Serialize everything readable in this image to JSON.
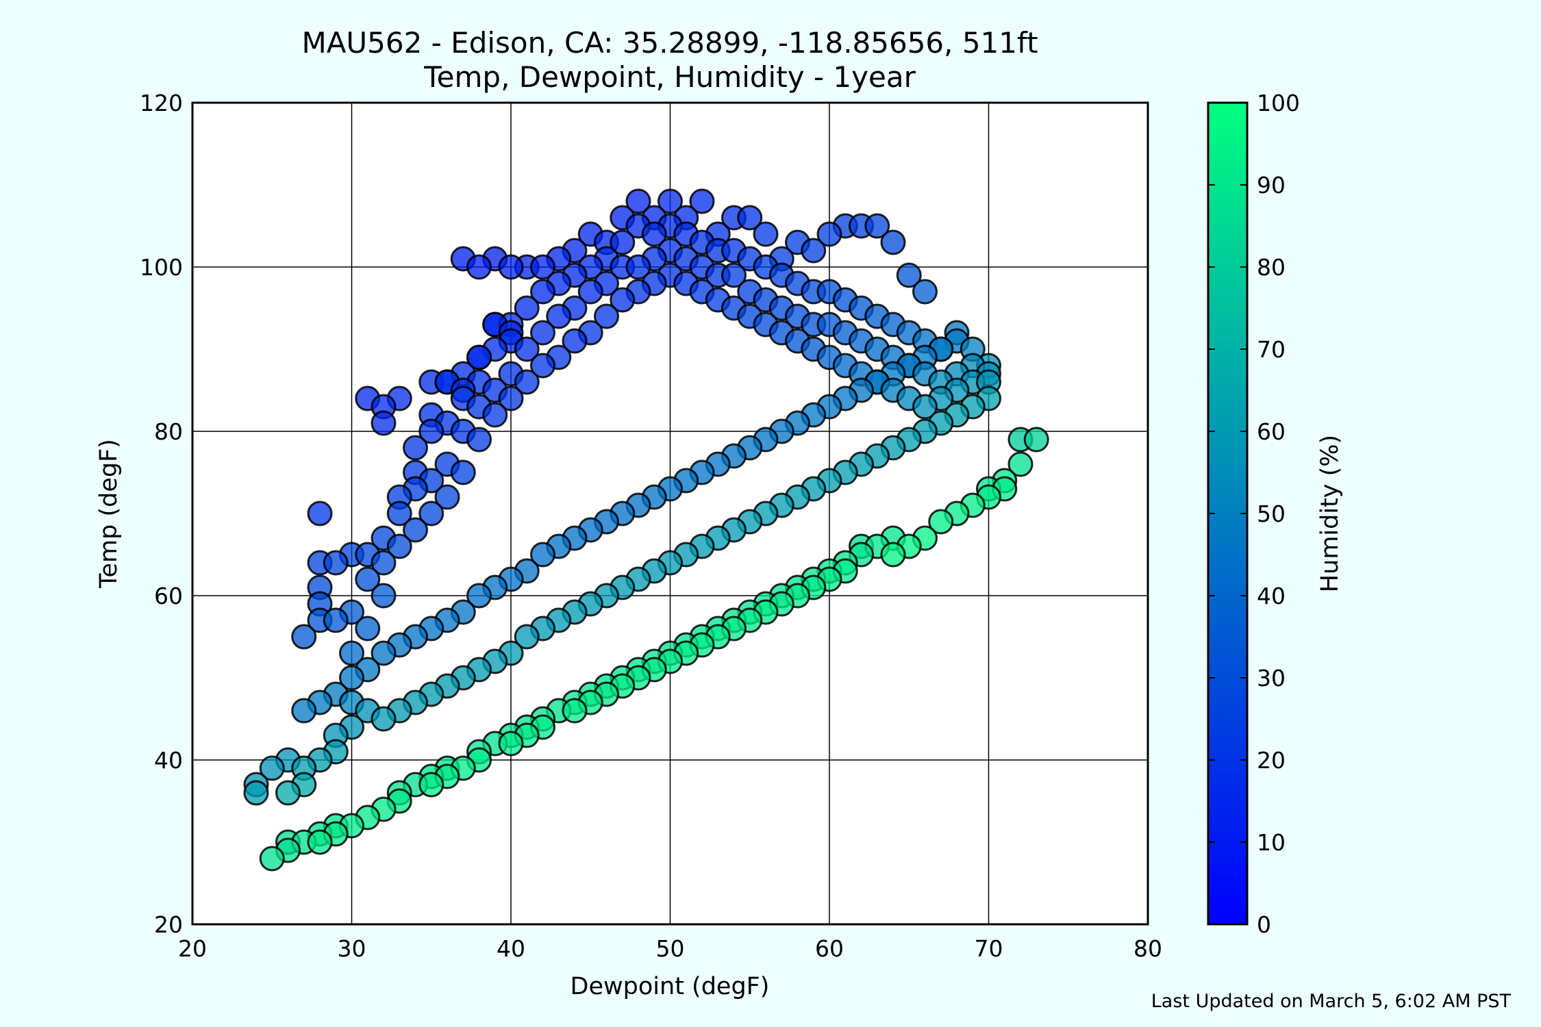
{
  "page": {
    "background": "#eeffff",
    "footer": "Last Updated on March 5, 6:02 AM PST"
  },
  "chart_data": {
    "type": "scatter",
    "title": "MAU562 - Edison, CA: 35.28899, -118.85656, 511ft",
    "subtitle": "Temp, Dewpoint, Humidity - 1year",
    "xlabel": "Dewpoint (degF)",
    "ylabel": "Temp (degF)",
    "xlim": [
      20,
      80
    ],
    "ylim": [
      20,
      120
    ],
    "xticks": [
      20,
      30,
      40,
      50,
      60,
      70,
      80
    ],
    "yticks": [
      20,
      40,
      60,
      80,
      100,
      120
    ],
    "grid": true,
    "colorbar": {
      "label": "Humidity (%)",
      "range": [
        0,
        100
      ],
      "ticks": [
        0,
        10,
        20,
        30,
        40,
        50,
        60,
        70,
        80,
        90,
        100
      ],
      "colormap": "winter",
      "low_color": "#0000ff",
      "high_color": "#00ff80"
    },
    "point_style": {
      "edge_color": "#000000",
      "alpha": 0.75
    },
    "points": [
      [
        25,
        28
      ],
      [
        26,
        29
      ],
      [
        26,
        30
      ],
      [
        27,
        30
      ],
      [
        28,
        30
      ],
      [
        28,
        31
      ],
      [
        29,
        31
      ],
      [
        29,
        32
      ],
      [
        30,
        32
      ],
      [
        31,
        33
      ],
      [
        32,
        34
      ],
      [
        33,
        35
      ],
      [
        33,
        36
      ],
      [
        34,
        37
      ],
      [
        35,
        37
      ],
      [
        35,
        38
      ],
      [
        36,
        38
      ],
      [
        36,
        39
      ],
      [
        37,
        39
      ],
      [
        38,
        40
      ],
      [
        38,
        41
      ],
      [
        39,
        42
      ],
      [
        40,
        42
      ],
      [
        40,
        43
      ],
      [
        41,
        43
      ],
      [
        41,
        44
      ],
      [
        42,
        44
      ],
      [
        42,
        45
      ],
      [
        43,
        46
      ],
      [
        44,
        46
      ],
      [
        44,
        47
      ],
      [
        45,
        47
      ],
      [
        45,
        48
      ],
      [
        46,
        48
      ],
      [
        46,
        49
      ],
      [
        47,
        49
      ],
      [
        47,
        50
      ],
      [
        48,
        50
      ],
      [
        48,
        51
      ],
      [
        49,
        51
      ],
      [
        49,
        52
      ],
      [
        50,
        52
      ],
      [
        50,
        53
      ],
      [
        51,
        53
      ],
      [
        51,
        54
      ],
      [
        52,
        54
      ],
      [
        52,
        55
      ],
      [
        53,
        55
      ],
      [
        53,
        56
      ],
      [
        54,
        56
      ],
      [
        54,
        57
      ],
      [
        55,
        57
      ],
      [
        55,
        58
      ],
      [
        56,
        58
      ],
      [
        56,
        59
      ],
      [
        57,
        59
      ],
      [
        57,
        60
      ],
      [
        58,
        60
      ],
      [
        58,
        61
      ],
      [
        59,
        61
      ],
      [
        59,
        62
      ],
      [
        60,
        62
      ],
      [
        60,
        63
      ],
      [
        61,
        63
      ],
      [
        61,
        64
      ],
      [
        62,
        65
      ],
      [
        62,
        66
      ],
      [
        63,
        66
      ],
      [
        64,
        65
      ],
      [
        64,
        67
      ],
      [
        65,
        66
      ],
      [
        66,
        67
      ],
      [
        67,
        69
      ],
      [
        68,
        70
      ],
      [
        69,
        71
      ],
      [
        70,
        72
      ],
      [
        70,
        73
      ],
      [
        71,
        73
      ],
      [
        71,
        74
      ],
      [
        72,
        76
      ],
      [
        72,
        79
      ],
      [
        73,
        79
      ],
      [
        24,
        36
      ],
      [
        24,
        37
      ],
      [
        25,
        39
      ],
      [
        26,
        36
      ],
      [
        26,
        40
      ],
      [
        27,
        37
      ],
      [
        27,
        39
      ],
      [
        28,
        40
      ],
      [
        29,
        41
      ],
      [
        29,
        43
      ],
      [
        30,
        44
      ],
      [
        30,
        47
      ],
      [
        31,
        46
      ],
      [
        32,
        45
      ],
      [
        33,
        46
      ],
      [
        34,
        47
      ],
      [
        35,
        48
      ],
      [
        36,
        49
      ],
      [
        37,
        50
      ],
      [
        38,
        51
      ],
      [
        39,
        52
      ],
      [
        40,
        53
      ],
      [
        41,
        55
      ],
      [
        42,
        56
      ],
      [
        43,
        57
      ],
      [
        44,
        58
      ],
      [
        45,
        59
      ],
      [
        46,
        60
      ],
      [
        47,
        61
      ],
      [
        48,
        62
      ],
      [
        49,
        63
      ],
      [
        50,
        64
      ],
      [
        51,
        65
      ],
      [
        52,
        66
      ],
      [
        53,
        67
      ],
      [
        54,
        68
      ],
      [
        55,
        69
      ],
      [
        56,
        70
      ],
      [
        57,
        71
      ],
      [
        58,
        72
      ],
      [
        59,
        73
      ],
      [
        60,
        74
      ],
      [
        61,
        75
      ],
      [
        62,
        76
      ],
      [
        63,
        77
      ],
      [
        64,
        78
      ],
      [
        65,
        79
      ],
      [
        66,
        80
      ],
      [
        67,
        81
      ],
      [
        68,
        82
      ],
      [
        69,
        83
      ],
      [
        70,
        84
      ],
      [
        27,
        46
      ],
      [
        28,
        47
      ],
      [
        29,
        48
      ],
      [
        30,
        50
      ],
      [
        31,
        51
      ],
      [
        32,
        53
      ],
      [
        33,
        54
      ],
      [
        34,
        55
      ],
      [
        35,
        56
      ],
      [
        36,
        57
      ],
      [
        37,
        58
      ],
      [
        38,
        60
      ],
      [
        39,
        61
      ],
      [
        40,
        62
      ],
      [
        41,
        63
      ],
      [
        42,
        65
      ],
      [
        43,
        66
      ],
      [
        44,
        67
      ],
      [
        45,
        68
      ],
      [
        46,
        69
      ],
      [
        47,
        70
      ],
      [
        48,
        71
      ],
      [
        49,
        72
      ],
      [
        50,
        73
      ],
      [
        51,
        74
      ],
      [
        52,
        75
      ],
      [
        53,
        76
      ],
      [
        54,
        77
      ],
      [
        55,
        78
      ],
      [
        56,
        79
      ],
      [
        57,
        80
      ],
      [
        58,
        81
      ],
      [
        59,
        82
      ],
      [
        60,
        83
      ],
      [
        61,
        84
      ],
      [
        62,
        85
      ],
      [
        63,
        86
      ],
      [
        64,
        87
      ],
      [
        65,
        88
      ],
      [
        66,
        89
      ],
      [
        67,
        90
      ],
      [
        68,
        91
      ],
      [
        69,
        90
      ],
      [
        70,
        88
      ],
      [
        27,
        55
      ],
      [
        28,
        57
      ],
      [
        28,
        59
      ],
      [
        28,
        61
      ],
      [
        28,
        64
      ],
      [
        29,
        57
      ],
      [
        29,
        64
      ],
      [
        28,
        70
      ],
      [
        30,
        53
      ],
      [
        30,
        58
      ],
      [
        30,
        65
      ],
      [
        31,
        56
      ],
      [
        31,
        62
      ],
      [
        31,
        65
      ],
      [
        32,
        60
      ],
      [
        32,
        64
      ],
      [
        32,
        67
      ],
      [
        33,
        66
      ],
      [
        33,
        70
      ],
      [
        33,
        72
      ],
      [
        34,
        68
      ],
      [
        34,
        73
      ],
      [
        34,
        75
      ],
      [
        34,
        78
      ],
      [
        35,
        70
      ],
      [
        35,
        74
      ],
      [
        35,
        80
      ],
      [
        35,
        86
      ],
      [
        36,
        72
      ],
      [
        36,
        76
      ],
      [
        36,
        81
      ],
      [
        36,
        86
      ],
      [
        37,
        75
      ],
      [
        37,
        80
      ],
      [
        37,
        84
      ],
      [
        37,
        87
      ],
      [
        38,
        79
      ],
      [
        38,
        83
      ],
      [
        38,
        86
      ],
      [
        38,
        89
      ],
      [
        39,
        82
      ],
      [
        39,
        85
      ],
      [
        39,
        90
      ],
      [
        39,
        93
      ],
      [
        40,
        84
      ],
      [
        40,
        87
      ],
      [
        40,
        91
      ],
      [
        40,
        93
      ],
      [
        41,
        86
      ],
      [
        41,
        90
      ],
      [
        41,
        95
      ],
      [
        41,
        100
      ],
      [
        42,
        88
      ],
      [
        42,
        92
      ],
      [
        42,
        97
      ],
      [
        42,
        100
      ],
      [
        43,
        89
      ],
      [
        43,
        94
      ],
      [
        43,
        98
      ],
      [
        43,
        101
      ],
      [
        44,
        91
      ],
      [
        44,
        95
      ],
      [
        44,
        99
      ],
      [
        44,
        102
      ],
      [
        45,
        92
      ],
      [
        45,
        97
      ],
      [
        45,
        100
      ],
      [
        45,
        104
      ],
      [
        46,
        94
      ],
      [
        46,
        98
      ],
      [
        46,
        101
      ],
      [
        46,
        103
      ],
      [
        47,
        96
      ],
      [
        47,
        100
      ],
      [
        47,
        103
      ],
      [
        47,
        106
      ],
      [
        48,
        97
      ],
      [
        48,
        100
      ],
      [
        48,
        105
      ],
      [
        48,
        108
      ],
      [
        49,
        98
      ],
      [
        49,
        101
      ],
      [
        49,
        104
      ],
      [
        49,
        106
      ],
      [
        50,
        99
      ],
      [
        50,
        102
      ],
      [
        50,
        105
      ],
      [
        50,
        108
      ],
      [
        51,
        98
      ],
      [
        51,
        101
      ],
      [
        51,
        104
      ],
      [
        51,
        106
      ],
      [
        52,
        97
      ],
      [
        52,
        100
      ],
      [
        52,
        103
      ],
      [
        52,
        108
      ],
      [
        53,
        96
      ],
      [
        53,
        99
      ],
      [
        53,
        102
      ],
      [
        53,
        104
      ],
      [
        54,
        95
      ],
      [
        54,
        99
      ],
      [
        54,
        102
      ],
      [
        54,
        106
      ],
      [
        55,
        94
      ],
      [
        55,
        97
      ],
      [
        55,
        101
      ],
      [
        55,
        106
      ],
      [
        56,
        93
      ],
      [
        56,
        96
      ],
      [
        56,
        100
      ],
      [
        56,
        104
      ],
      [
        57,
        92
      ],
      [
        57,
        95
      ],
      [
        57,
        99
      ],
      [
        57,
        101
      ],
      [
        58,
        91
      ],
      [
        58,
        94
      ],
      [
        58,
        98
      ],
      [
        58,
        103
      ],
      [
        59,
        90
      ],
      [
        59,
        93
      ],
      [
        59,
        97
      ],
      [
        59,
        102
      ],
      [
        60,
        89
      ],
      [
        60,
        93
      ],
      [
        60,
        97
      ],
      [
        60,
        104
      ],
      [
        61,
        88
      ],
      [
        61,
        92
      ],
      [
        61,
        96
      ],
      [
        61,
        105
      ],
      [
        62,
        87
      ],
      [
        62,
        91
      ],
      [
        62,
        95
      ],
      [
        62,
        105
      ],
      [
        63,
        86
      ],
      [
        63,
        90
      ],
      [
        63,
        94
      ],
      [
        63,
        105
      ],
      [
        64,
        85
      ],
      [
        64,
        89
      ],
      [
        64,
        93
      ],
      [
        64,
        103
      ],
      [
        65,
        84
      ],
      [
        65,
        88
      ],
      [
        65,
        92
      ],
      [
        65,
        99
      ],
      [
        66,
        83
      ],
      [
        66,
        87
      ],
      [
        66,
        91
      ],
      [
        66,
        97
      ],
      [
        67,
        84
      ],
      [
        67,
        86
      ],
      [
        67,
        90
      ],
      [
        68,
        85
      ],
      [
        68,
        87
      ],
      [
        68,
        92
      ],
      [
        69,
        86
      ],
      [
        69,
        88
      ],
      [
        70,
        86
      ],
      [
        70,
        87
      ],
      [
        31,
        84
      ],
      [
        32,
        83
      ],
      [
        32,
        81
      ],
      [
        33,
        84
      ],
      [
        37,
        101
      ],
      [
        38,
        100
      ],
      [
        39,
        101
      ],
      [
        40,
        100
      ],
      [
        40,
        92
      ],
      [
        39,
        93
      ],
      [
        38,
        89
      ],
      [
        37,
        85
      ],
      [
        36,
        86
      ],
      [
        35,
        82
      ]
    ]
  }
}
